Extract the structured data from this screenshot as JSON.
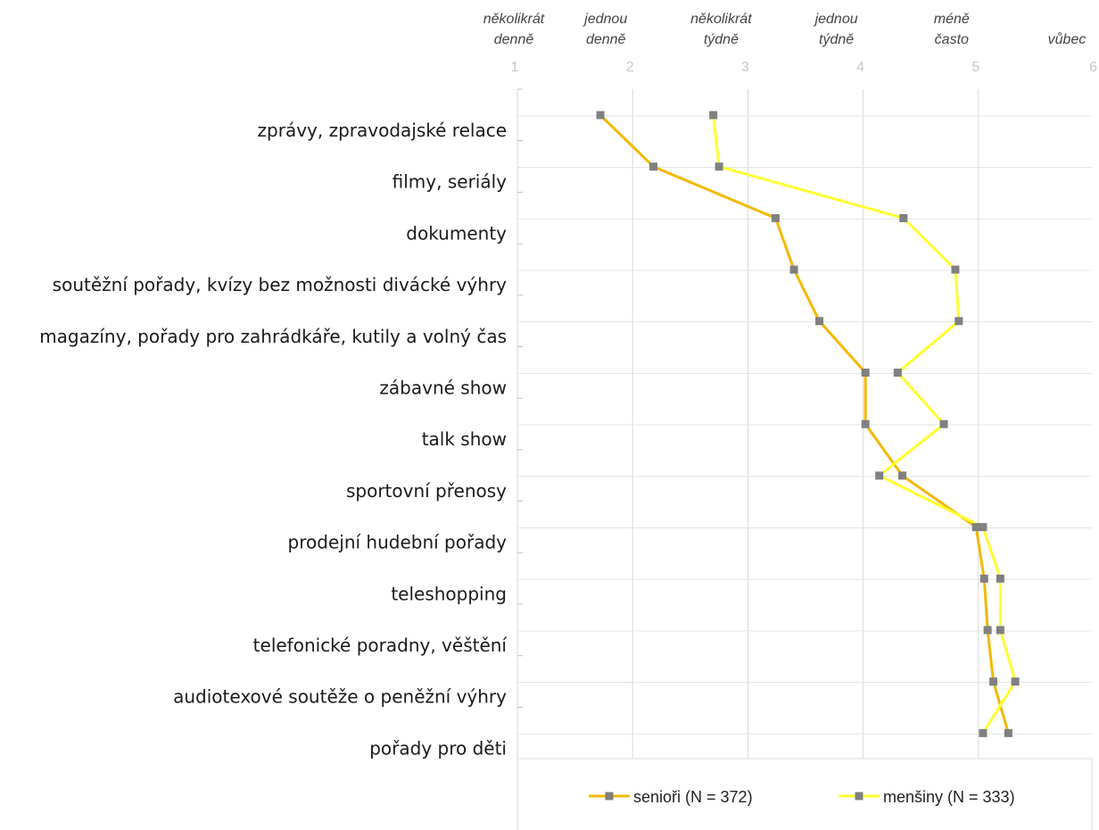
{
  "chart_data": {
    "type": "line",
    "orientation": "horizontal",
    "title": "",
    "xlim": [
      1,
      6
    ],
    "x_ticks": [
      1,
      2,
      3,
      4,
      5,
      6
    ],
    "x_tick_headers": [
      [
        "několikrát",
        "denně"
      ],
      [
        "jednou",
        "denně"
      ],
      [
        "několikrát",
        "týdně"
      ],
      [
        "jednou",
        "týdně"
      ],
      [
        "méně",
        "často"
      ],
      [
        "vůbec"
      ]
    ],
    "categories": [
      "zprávy, zpravodajské relace",
      "filmy, seriály",
      "dokumenty",
      "soutěžní pořady, kvízy bez možnosti divácké výhry",
      "magazíny, pořady pro zahrádkáře, kutily a volný čas",
      "zábavné show",
      "talk show",
      "sportovní přenosy",
      "prodejní hudební pořady",
      "teleshopping",
      "telefonické poradny, věštění",
      "audiotexové soutěže o peněžní výhry",
      "pořady pro děti"
    ],
    "series": [
      {
        "name": "senioři (N = 372)",
        "color": "#f5b800",
        "values": [
          1.72,
          2.18,
          3.24,
          3.4,
          3.62,
          4.02,
          4.02,
          4.34,
          4.98,
          5.05,
          5.08,
          5.13,
          5.26
        ]
      },
      {
        "name": "menšiny (N = 333)",
        "color": "#ffff33",
        "values": [
          2.7,
          2.75,
          4.35,
          4.8,
          4.83,
          4.3,
          4.7,
          4.14,
          5.04,
          5.19,
          5.19,
          5.32,
          5.04
        ]
      }
    ],
    "marker_color": "#808080",
    "grid": true,
    "legend_position": "bottom"
  }
}
